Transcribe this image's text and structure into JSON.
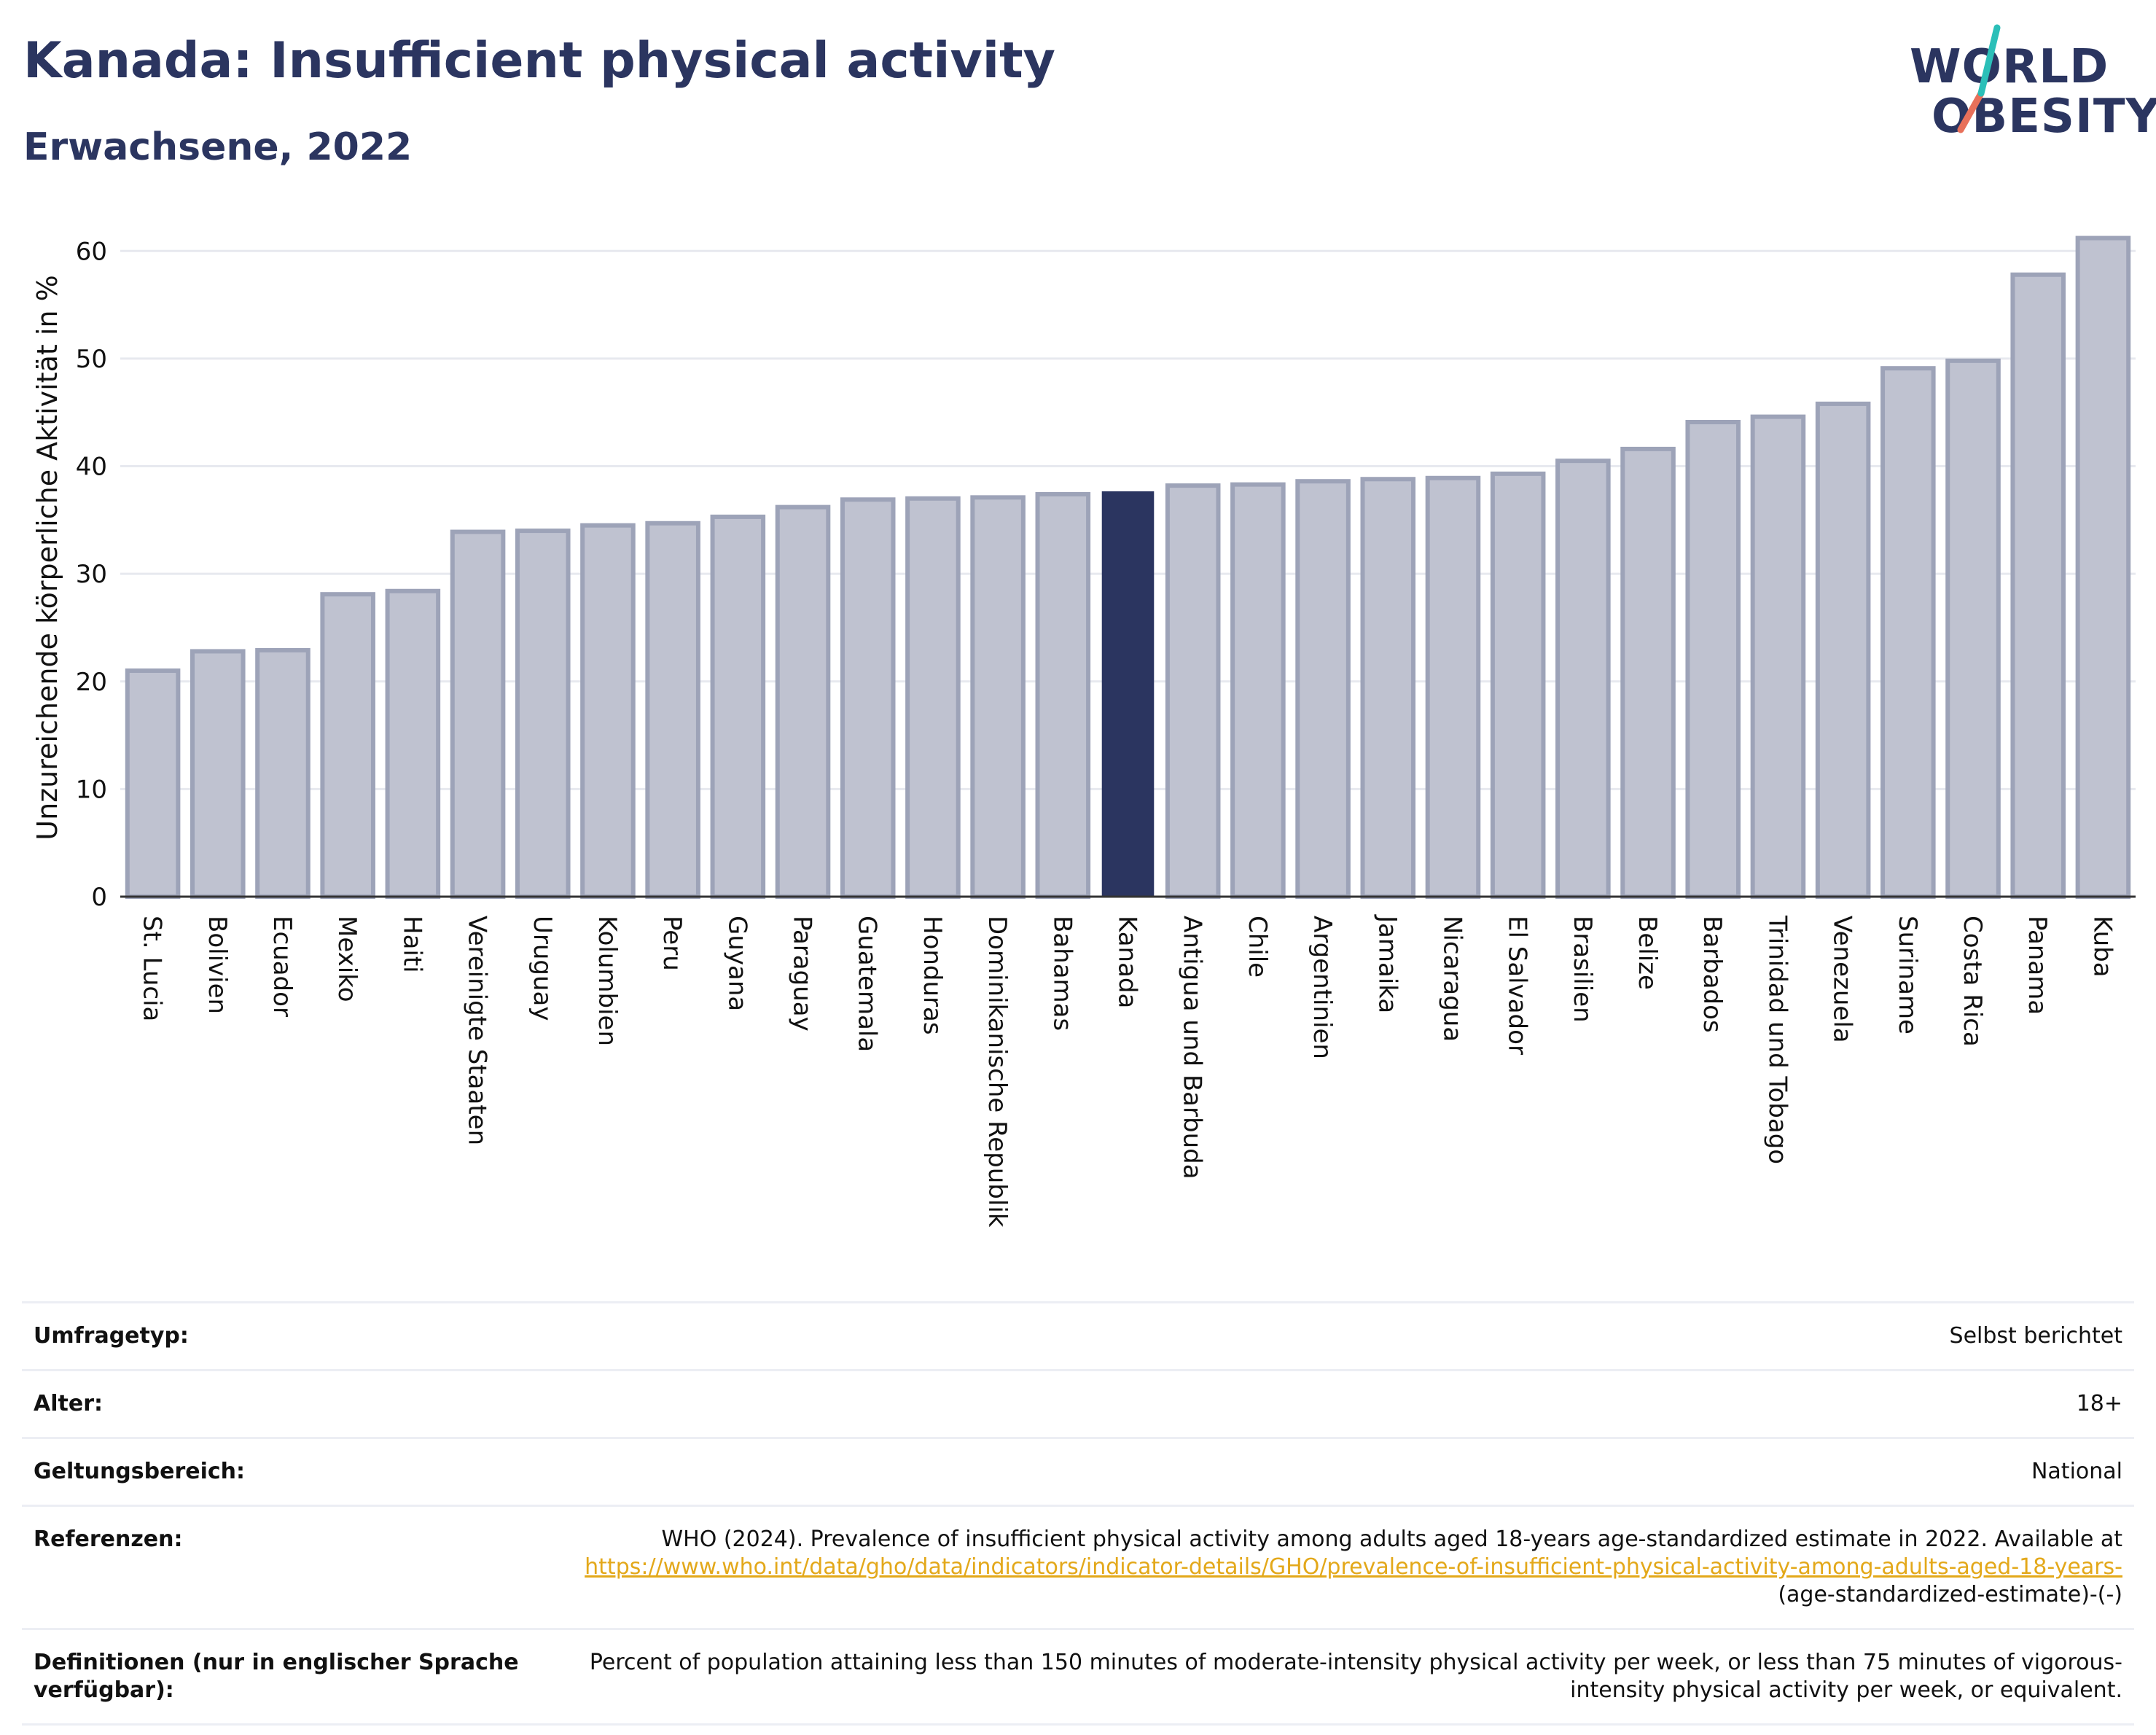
{
  "header": {
    "title": "Kanada: Insufficient physical activity",
    "subtitle": "Erwachsene, 2022"
  },
  "logo": {
    "line1": "WORLD",
    "line2": "OBESITY",
    "accent_teal": "#2bbfb8",
    "accent_coral": "#e8705a"
  },
  "colors": {
    "bar_default": "#bfc2d0",
    "bar_border": "#9da3b8",
    "bar_highlight": "#2b3560",
    "text_dark": "#2b3560",
    "link": "#e3a81a"
  },
  "chart_data": {
    "type": "bar",
    "title": "Kanada: Insufficient physical activity",
    "subtitle": "Erwachsene, 2022",
    "ylabel": "Unzureichende körperliche Aktivität in %",
    "xlabel": "",
    "ylim": [
      0,
      63
    ],
    "yticks": [
      0,
      10,
      20,
      30,
      40,
      50,
      60
    ],
    "grid": true,
    "highlight": "Kanada",
    "categories": [
      "St. Lucia",
      "Bolivien",
      "Ecuador",
      "Mexiko",
      "Haiti",
      "Vereinigte Staaten",
      "Uruguay",
      "Kolumbien",
      "Peru",
      "Guyana",
      "Paraguay",
      "Guatemala",
      "Honduras",
      "Dominikanische Republik",
      "Bahamas",
      "Kanada",
      "Antigua und Barbuda",
      "Chile",
      "Argentinien",
      "Jamaika",
      "Nicaragua",
      "El Salvador",
      "Brasilien",
      "Belize",
      "Barbados",
      "Trinidad und Tobago",
      "Venezuela",
      "Suriname",
      "Costa Rica",
      "Panama",
      "Kuba"
    ],
    "values": [
      21.0,
      22.8,
      22.9,
      28.1,
      28.4,
      33.9,
      34.0,
      34.5,
      34.7,
      35.3,
      36.2,
      36.9,
      37.0,
      37.1,
      37.4,
      37.6,
      38.2,
      38.3,
      38.6,
      38.8,
      38.9,
      39.3,
      40.5,
      41.6,
      44.1,
      44.6,
      45.8,
      49.1,
      49.8,
      57.8,
      61.2
    ]
  },
  "info": {
    "rows": [
      {
        "key": "Umfragetyp:",
        "value": "Selbst berichtet"
      },
      {
        "key": "Alter:",
        "value": "18+"
      },
      {
        "key": "Geltungsbereich:",
        "value": "National"
      }
    ],
    "references": {
      "key": "Referenzen:",
      "text": "WHO (2024). Prevalence of insufficient physical activity among adults aged 18-years age-standardized estimate in 2022. Available at",
      "link": "https://www.who.int/data/gho/data/indicators/indicator-details/GHO/prevalence-of-insufficient-physical-activity-among-adults-aged-18-years-",
      "suffix": "(age-standardized-estimate)-(-)"
    },
    "definitions": {
      "key": "Definitionen (nur in englischer Sprache verfügbar):",
      "value": "Percent of population attaining less than 150 minutes of moderate-intensity physical activity per week, or less than 75 minutes of vigorous-intensity physical activity per week, or equivalent."
    }
  }
}
